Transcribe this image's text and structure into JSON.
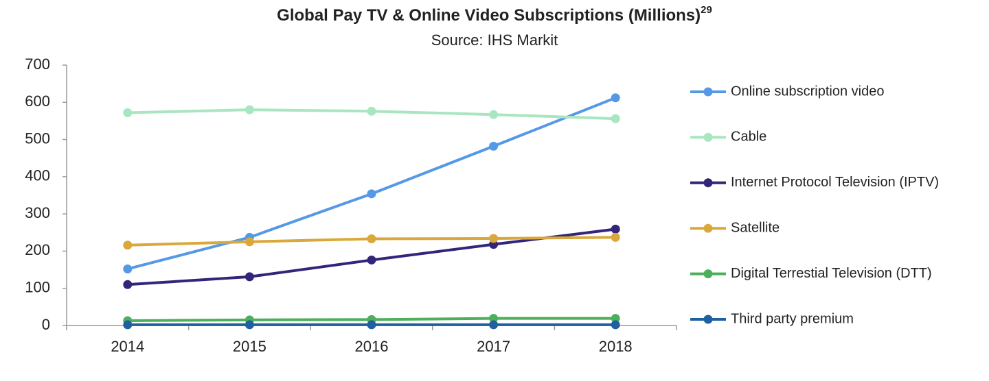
{
  "chart_data": {
    "type": "line",
    "title": "Global Pay TV & Online Video Subscriptions (Millions)",
    "title_superscript": "29",
    "subtitle": "Source: IHS Markit",
    "categories": [
      "2014",
      "2015",
      "2016",
      "2017",
      "2018"
    ],
    "series": [
      {
        "name": "Online subscription video",
        "color": "#5599e6",
        "values": [
          152,
          237,
          354,
          482,
          612
        ]
      },
      {
        "name": "Cable",
        "color": "#a8e6c0",
        "values": [
          572,
          580,
          576,
          567,
          556
        ]
      },
      {
        "name": "Internet Protocol Television (IPTV)",
        "color": "#33257a",
        "values": [
          110,
          131,
          176,
          218,
          259
        ]
      },
      {
        "name": "Satellite",
        "color": "#daa83a",
        "values": [
          216,
          225,
          233,
          234,
          237
        ]
      },
      {
        "name": "Digital Terrestial Television (DTT)",
        "color": "#4caf5a",
        "values": [
          13,
          15,
          16,
          19,
          19
        ]
      },
      {
        "name": "Third party premium",
        "color": "#2060a0",
        "values": [
          2,
          2,
          2,
          2,
          2
        ]
      }
    ],
    "ylim": [
      0,
      700
    ],
    "yticks": [
      0,
      100,
      200,
      300,
      400,
      500,
      600,
      700
    ],
    "grid": false,
    "legend": "right"
  }
}
